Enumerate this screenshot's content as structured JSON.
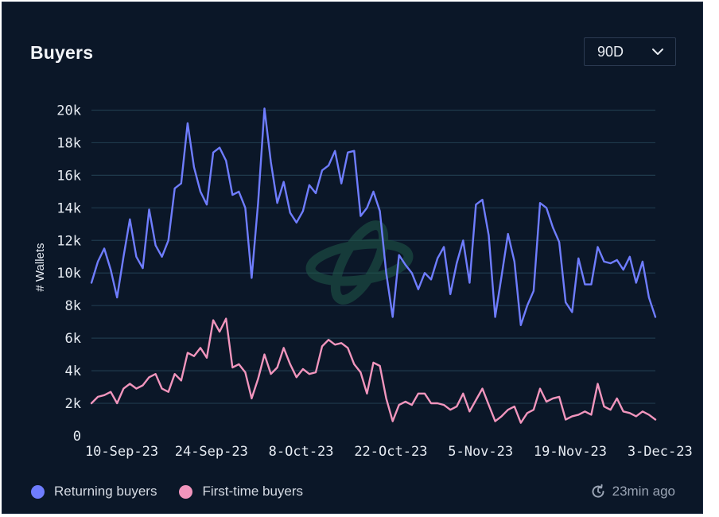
{
  "header": {
    "title": "Buyers",
    "range_value": "90D"
  },
  "footer": {
    "updated": "23min ago"
  },
  "colors": {
    "background": "#0b1728",
    "gridline": "#1f3a4c",
    "returning": "#6f7dff",
    "first_time": "#f195bd",
    "watermark": "#1f5a4a"
  },
  "chart_data": {
    "type": "line",
    "title": "Buyers",
    "xlabel": "",
    "ylabel": "# Wallets",
    "ylim": [
      0,
      21000
    ],
    "yticks": [
      0,
      2000,
      4000,
      6000,
      8000,
      10000,
      12000,
      14000,
      16000,
      18000,
      20000
    ],
    "ytick_labels": [
      "0",
      "2k",
      "4k",
      "6k",
      "8k",
      "10k",
      "12k",
      "14k",
      "16k",
      "18k",
      "20k"
    ],
    "grid": true,
    "legend_position": "bottom-left",
    "x": [
      "10-Sep-23",
      "11-Sep-23",
      "12-Sep-23",
      "13-Sep-23",
      "14-Sep-23",
      "15-Sep-23",
      "16-Sep-23",
      "17-Sep-23",
      "18-Sep-23",
      "19-Sep-23",
      "20-Sep-23",
      "21-Sep-23",
      "22-Sep-23",
      "23-Sep-23",
      "24-Sep-23",
      "25-Sep-23",
      "26-Sep-23",
      "27-Sep-23",
      "28-Sep-23",
      "29-Sep-23",
      "30-Sep-23",
      "1-Oct-23",
      "2-Oct-23",
      "3-Oct-23",
      "4-Oct-23",
      "5-Oct-23",
      "6-Oct-23",
      "7-Oct-23",
      "8-Oct-23",
      "9-Oct-23",
      "10-Oct-23",
      "11-Oct-23",
      "12-Oct-23",
      "13-Oct-23",
      "14-Oct-23",
      "15-Oct-23",
      "16-Oct-23",
      "17-Oct-23",
      "18-Oct-23",
      "19-Oct-23",
      "20-Oct-23",
      "21-Oct-23",
      "22-Oct-23",
      "23-Oct-23",
      "24-Oct-23",
      "25-Oct-23",
      "26-Oct-23",
      "27-Oct-23",
      "28-Oct-23",
      "29-Oct-23",
      "30-Oct-23",
      "31-Oct-23",
      "1-Nov-23",
      "2-Nov-23",
      "3-Nov-23",
      "4-Nov-23",
      "5-Nov-23",
      "6-Nov-23",
      "7-Nov-23",
      "8-Nov-23",
      "9-Nov-23",
      "10-Nov-23",
      "11-Nov-23",
      "12-Nov-23",
      "13-Nov-23",
      "14-Nov-23",
      "15-Nov-23",
      "16-Nov-23",
      "17-Nov-23",
      "18-Nov-23",
      "19-Nov-23",
      "20-Nov-23",
      "21-Nov-23",
      "22-Nov-23",
      "23-Nov-23",
      "24-Nov-23",
      "25-Nov-23",
      "26-Nov-23",
      "27-Nov-23",
      "28-Nov-23",
      "29-Nov-23",
      "30-Nov-23",
      "1-Dec-23",
      "2-Dec-23",
      "3-Dec-23",
      "4-Dec-23",
      "5-Dec-23",
      "6-Dec-23",
      "7-Dec-23"
    ],
    "x_tick_labels": [
      "10-Sep-23",
      "24-Sep-23",
      "8-Oct-23",
      "22-Oct-23",
      "5-Nov-23",
      "19-Nov-23",
      "3-Dec-23"
    ],
    "x_tick_index": [
      0,
      14,
      28,
      42,
      56,
      70,
      84
    ],
    "series": [
      {
        "name": "Returning buyers",
        "color": "#6f7dff",
        "values": [
          9400,
          10700,
          11500,
          10200,
          8500,
          11000,
          13300,
          11000,
          10300,
          13900,
          11700,
          11000,
          12000,
          15200,
          15500,
          19200,
          16500,
          15000,
          14200,
          17400,
          17700,
          16900,
          14800,
          15000,
          14000,
          9700,
          14300,
          20100,
          16800,
          14300,
          15600,
          13700,
          13100,
          13800,
          15400,
          14900,
          16300,
          16600,
          17500,
          15500,
          17400,
          17500,
          13500,
          14000,
          15000,
          13800,
          10000,
          7300,
          11100,
          10500,
          10000,
          9000,
          10000,
          9600,
          10900,
          11600,
          8700,
          10600,
          12000,
          9400,
          14200,
          14500,
          12300,
          7300,
          9800,
          12400,
          10700,
          6800,
          8000,
          8900,
          14300,
          14000,
          12800,
          11900,
          8200,
          7600,
          10900,
          9300,
          9300,
          11600,
          10700,
          10600,
          10800,
          10200,
          11000,
          9400,
          10700,
          8500,
          7300
        ]
      },
      {
        "name": "First-time buyers",
        "color": "#f195bd",
        "values": [
          2000,
          2400,
          2500,
          2700,
          2000,
          2900,
          3200,
          2900,
          3100,
          3600,
          3800,
          2900,
          2700,
          3800,
          3400,
          5100,
          4900,
          5400,
          4800,
          7100,
          6400,
          7200,
          4200,
          4400,
          3900,
          2300,
          3500,
          5000,
          3800,
          4200,
          5400,
          4400,
          3600,
          4100,
          3800,
          3900,
          5500,
          5900,
          5600,
          5700,
          5400,
          4400,
          3900,
          2600,
          4500,
          4300,
          2300,
          900,
          1900,
          2100,
          1900,
          2600,
          2600,
          2000,
          2000,
          1900,
          1600,
          1800,
          2600,
          1500,
          2200,
          2900,
          1900,
          900,
          1200,
          1600,
          1800,
          800,
          1400,
          1600,
          2900,
          2100,
          2300,
          2400,
          1000,
          1200,
          1300,
          1500,
          1300,
          3200,
          1800,
          1600,
          2300,
          1500,
          1400,
          1200,
          1500,
          1300,
          1000
        ]
      }
    ]
  }
}
